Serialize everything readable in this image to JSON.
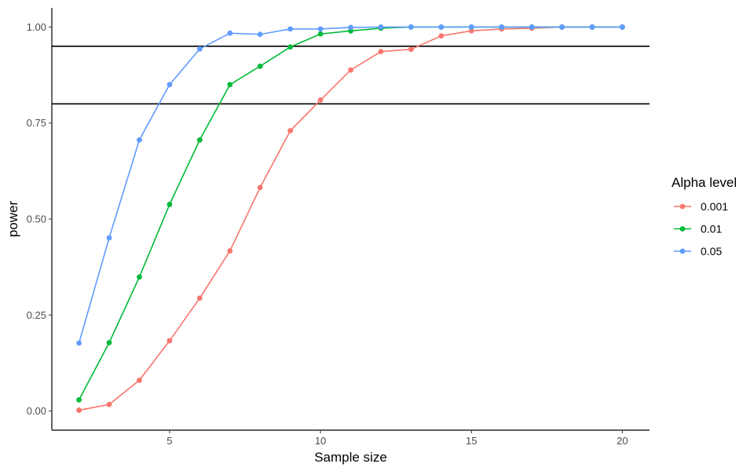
{
  "chart_data": {
    "type": "line",
    "xlabel": "Sample size",
    "ylabel": "power",
    "xlim": [
      1.1,
      20.9
    ],
    "ylim": [
      -0.05,
      1.05
    ],
    "x_ticks": [
      5,
      10,
      15,
      20
    ],
    "x_tick_labels": [
      "5",
      "10",
      "15",
      "20"
    ],
    "y_ticks": [
      0,
      0.25,
      0.5,
      0.75,
      1.0
    ],
    "y_tick_labels": [
      "0.00",
      "0.25",
      "0.50",
      "0.75",
      "1.00"
    ],
    "grid": false,
    "legend_title": "Alpha level",
    "legend_position": "right",
    "reference_lines": [
      0.8,
      0.95
    ],
    "x": [
      2,
      3,
      4,
      5,
      6,
      7,
      8,
      9,
      10,
      11,
      12,
      13,
      14,
      15,
      16,
      17,
      18,
      19,
      20
    ],
    "series": [
      {
        "name": "0.001",
        "color": "#F8766D",
        "values": [
          0.002,
          0.017,
          0.08,
          0.183,
          0.294,
          0.417,
          0.582,
          0.73,
          0.81,
          0.888,
          0.936,
          0.942,
          0.977,
          0.99,
          0.995,
          0.997,
          1.0,
          1.0,
          1.0
        ]
      },
      {
        "name": "0.01",
        "color": "#00BA38",
        "values": [
          0.029,
          0.178,
          0.349,
          0.538,
          0.706,
          0.85,
          0.898,
          0.948,
          0.982,
          0.99,
          0.997,
          1.0,
          1.0,
          1.0,
          1.0,
          1.0,
          1.0,
          1.0,
          1.0
        ]
      },
      {
        "name": "0.05",
        "color": "#619CFF",
        "values": [
          0.177,
          0.451,
          0.706,
          0.85,
          0.943,
          0.984,
          0.981,
          0.995,
          0.995,
          0.999,
          1.0,
          1.0,
          1.0,
          1.0,
          1.0,
          1.0,
          1.0,
          1.0,
          1.0
        ]
      }
    ]
  }
}
